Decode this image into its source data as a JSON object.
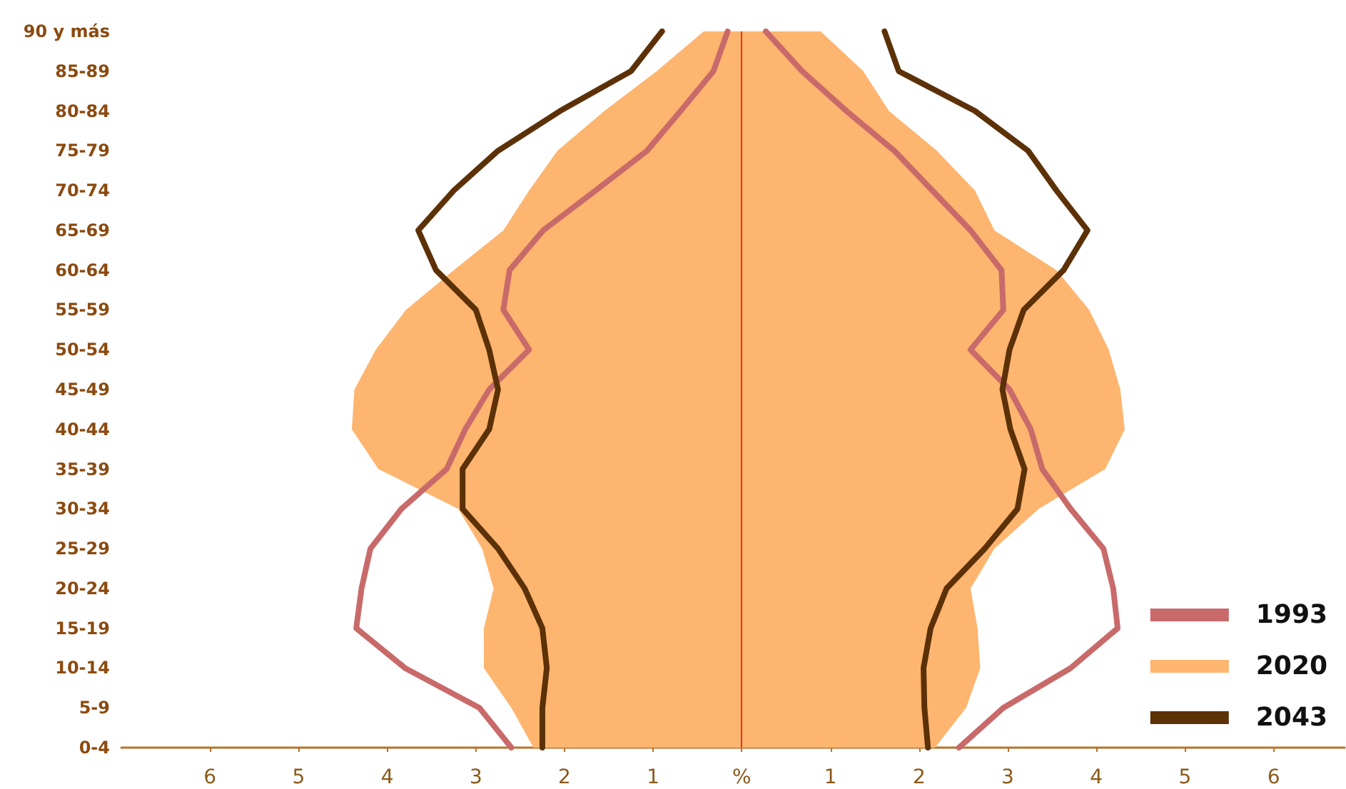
{
  "chart_data": {
    "type": "area",
    "orientation": "horizontal",
    "categories": [
      "90 y más",
      "85-89",
      "80-84",
      "75-79",
      "70-74",
      "65-69",
      "60-64",
      "55-59",
      "50-54",
      "45-49",
      "40-44",
      "35-39",
      "30-34",
      "25-29",
      "20-24",
      "15-19",
      "10-14",
      "5-9",
      "0-4"
    ],
    "series": [
      {
        "name": "1993",
        "type": "line",
        "color": "#c96a6a",
        "values": [
          -0.16,
          -0.32,
          -0.69,
          -1.07,
          -1.65,
          -2.24,
          -2.62,
          -2.69,
          -2.4,
          -2.85,
          -3.12,
          -3.33,
          -3.84,
          -4.19,
          -4.29,
          -4.35,
          -3.8,
          -2.96,
          -2.6
        ]
      },
      {
        "type": "line",
        "color": "#c96a6a",
        "values": [
          0.27,
          0.68,
          1.18,
          1.72,
          2.15,
          2.58,
          2.93,
          2.95,
          2.58,
          3.02,
          3.26,
          3.39,
          3.71,
          4.08,
          4.19,
          4.24,
          3.71,
          2.95,
          2.45
        ]
      },
      {
        "name": "2020",
        "color": "#fdb56f",
        "values": [
          -0.43,
          -0.96,
          -1.55,
          -2.08,
          -2.4,
          -2.69,
          -3.25,
          -3.79,
          -4.13,
          -4.37,
          -4.4,
          -4.1,
          -3.2,
          -2.93,
          -2.8,
          -2.91,
          -2.91,
          -2.6,
          -2.35
        ]
      },
      {
        "color": "#fdb56f",
        "values": [
          0.89,
          1.37,
          1.66,
          2.2,
          2.63,
          2.85,
          3.55,
          3.92,
          4.14,
          4.27,
          4.32,
          4.1,
          3.35,
          2.85,
          2.58,
          2.66,
          2.69,
          2.53,
          2.18
        ]
      },
      {
        "name": "2043",
        "type": "line",
        "color": "#5c3108",
        "values": [
          -0.9,
          -1.25,
          -2.05,
          -2.75,
          -3.25,
          -3.65,
          -3.45,
          -3.0,
          -2.85,
          -2.75,
          -2.85,
          -3.15,
          -3.15,
          -2.75,
          -2.45,
          -2.25,
          -2.2,
          -2.25,
          -2.25
        ]
      },
      {
        "type": "line",
        "color": "#5c3108",
        "values": [
          1.61,
          1.77,
          2.63,
          3.23,
          3.55,
          3.9,
          3.63,
          3.18,
          3.02,
          2.94,
          3.03,
          3.19,
          3.11,
          2.74,
          2.31,
          2.13,
          2.05,
          2.06,
          2.1
        ]
      }
    ],
    "xlim": [
      -7,
      6.8
    ],
    "xticks": [
      {
        "value": -6,
        "label": "6"
      },
      {
        "value": -5,
        "label": "5"
      },
      {
        "value": -4,
        "label": "4"
      },
      {
        "value": -3,
        "label": "3"
      },
      {
        "value": -2,
        "label": "2"
      },
      {
        "value": -1,
        "label": "1"
      },
      {
        "value": 0,
        "label": "%"
      },
      1,
      2,
      3,
      4,
      5,
      6
    ],
    "ref_lines": [
      {
        "axis": "x",
        "value": 0,
        "color": "#e8321e"
      }
    ],
    "legend": "bottom right",
    "grid": false
  }
}
